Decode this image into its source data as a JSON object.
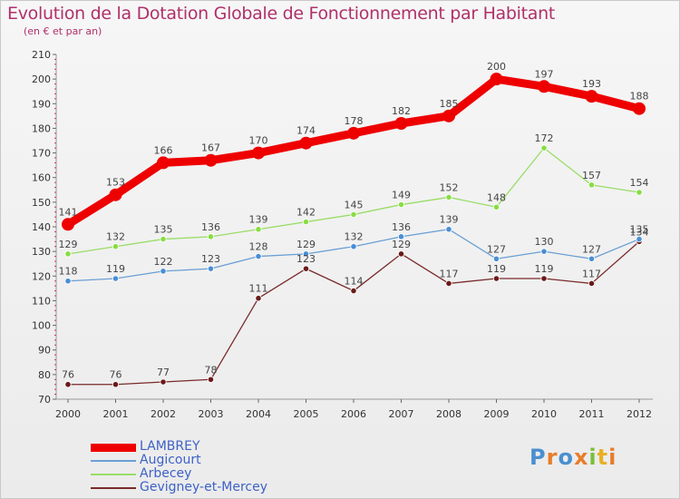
{
  "title": "Evolution de la Dotation Globale de Fonctionnement par Habitant",
  "subtitle": "(en € et par an)",
  "logo": "Proxiti",
  "logo_colors": [
    "#4a8fd0",
    "#e87d2a",
    "#4a8fd0",
    "#e87d2a",
    "#7bbf3a",
    "#e8b024",
    "#e87d2a"
  ],
  "chart_data": {
    "type": "line",
    "title": "Evolution de la Dotation Globale de Fonctionnement par Habitant",
    "subtitle": "(en € et par an)",
    "x": [
      "2000",
      "2001",
      "2002",
      "2003",
      "2004",
      "2005",
      "2006",
      "2007",
      "2008",
      "2009",
      "2010",
      "2011",
      "2012"
    ],
    "ylim": [
      70,
      210
    ],
    "yticks": [
      70,
      80,
      90,
      100,
      110,
      120,
      130,
      140,
      150,
      160,
      170,
      180,
      190,
      200,
      210
    ],
    "grid": false,
    "legend_position": "bottom-left",
    "series": [
      {
        "name": "LAMBREY",
        "color": "#ee0000",
        "values": [
          141,
          153,
          166,
          167,
          170,
          174,
          178,
          182,
          185,
          200,
          197,
          193,
          188
        ]
      },
      {
        "name": "Augicourt",
        "color": "#6a9fd4",
        "values": [
          118,
          119,
          122,
          123,
          128,
          129,
          132,
          136,
          139,
          127,
          130,
          127,
          135
        ]
      },
      {
        "name": "Arbecey",
        "color": "#99dd66",
        "values": [
          129,
          132,
          135,
          136,
          139,
          142,
          145,
          149,
          152,
          148,
          172,
          157,
          154
        ]
      },
      {
        "name": "Gevigney-et-Mercey",
        "color": "#7a2a2a",
        "values": [
          76,
          76,
          77,
          78,
          111,
          123,
          114,
          129,
          117,
          119,
          119,
          117,
          134
        ]
      }
    ]
  }
}
